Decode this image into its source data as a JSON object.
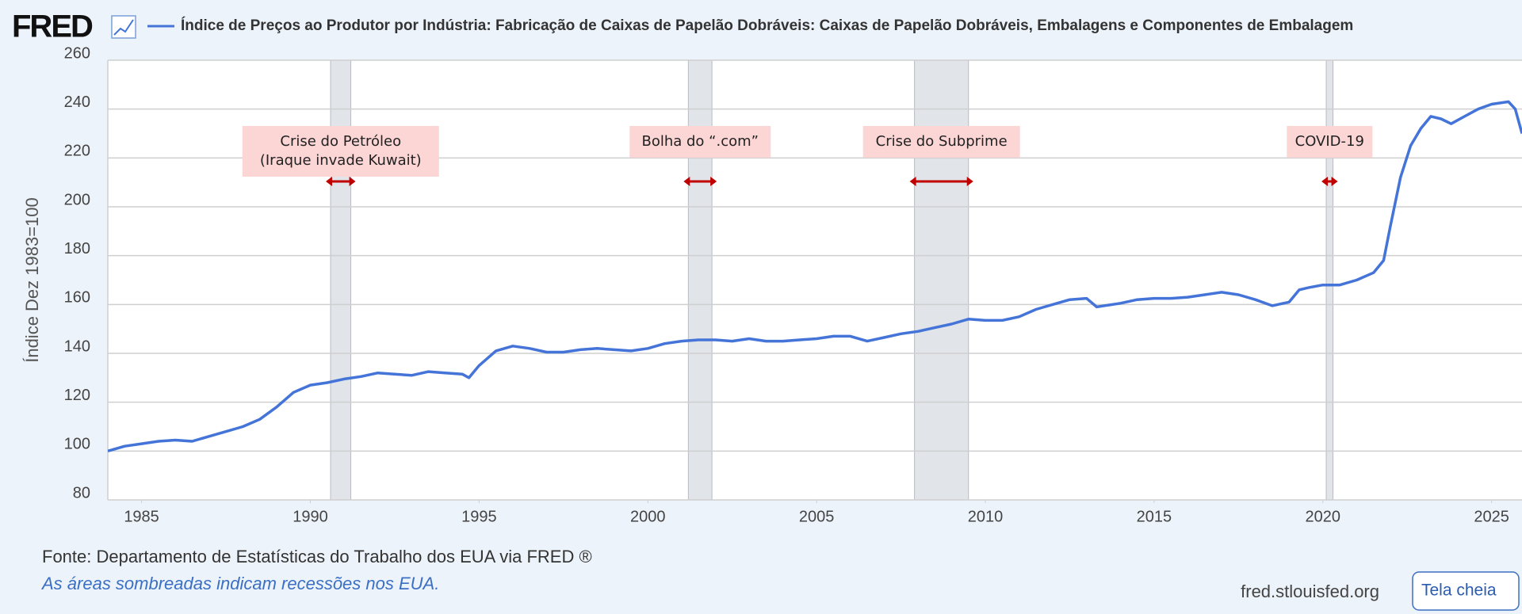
{
  "logo": "FRED",
  "chart_data": {
    "type": "line",
    "title": "Índice de Preços ao Produtor por Indústria: Fabricação de Caixas de Papelão Dobráveis: Caixas de Papelão Dobráveis, Embalagens e Componentes de Embalagem",
    "ylabel": "Índice Dez 1983=100",
    "xlim": [
      1984,
      2025.9
    ],
    "xticks": [
      1985,
      1990,
      1995,
      2000,
      2005,
      2010,
      2015,
      2020,
      2025
    ],
    "ylim": [
      80,
      260
    ],
    "yticks": [
      80,
      100,
      120,
      140,
      160,
      180,
      200,
      220,
      240,
      260
    ],
    "grid": true,
    "x": [
      1984.0,
      1984.5,
      1985,
      1985.5,
      1986,
      1986.5,
      1987,
      1987.5,
      1988,
      1988.5,
      1989,
      1989.5,
      1990,
      1990.5,
      1991,
      1991.5,
      1992,
      1992.5,
      1993,
      1993.5,
      1994,
      1994.5,
      1994.7,
      1995,
      1995.5,
      1996,
      1996.5,
      1997,
      1997.5,
      1998,
      1998.5,
      1999,
      1999.5,
      2000,
      2000.5,
      2001,
      2001.5,
      2002,
      2002.5,
      2003,
      2003.5,
      2004,
      2004.5,
      2005,
      2005.5,
      2006,
      2006.5,
      2007,
      2007.5,
      2008,
      2008.5,
      2009,
      2009.5,
      2010,
      2010.5,
      2011,
      2011.5,
      2012,
      2012.5,
      2013,
      2013.3,
      2014,
      2014.5,
      2015,
      2015.5,
      2016,
      2016.5,
      2017,
      2017.5,
      2018,
      2018.5,
      2019,
      2019.3,
      2019.6,
      2020,
      2020.5,
      2021,
      2021.5,
      2021.8,
      2022,
      2022.3,
      2022.6,
      2022.9,
      2023.2,
      2023.5,
      2023.8,
      2024.2,
      2024.6,
      2025,
      2025.5,
      2025.7,
      2025.9
    ],
    "series": [
      {
        "name": "Índice de Preços ao Produtor por Indústria: Fabricação de Caixas de Papelão Dobráveis: Caixas de Papelão Dobráveis, Embalagens e Componentes de Embalagem",
        "color": "#4574d8",
        "values": [
          100,
          102,
          103,
          104,
          104.5,
          104,
          106,
          108,
          110,
          113,
          118,
          124,
          127,
          128,
          129.5,
          130.5,
          132,
          131.5,
          131,
          132.5,
          132,
          131.5,
          130,
          135,
          141,
          143,
          142,
          140.5,
          140.5,
          141.5,
          142,
          141.5,
          141,
          142,
          144,
          145,
          145.5,
          145.5,
          145,
          146,
          145,
          145,
          145.5,
          146,
          147,
          147,
          145,
          146.5,
          148,
          149,
          150.5,
          152,
          154,
          153.5,
          153.5,
          155,
          158,
          160,
          162,
          162.5,
          159,
          160.5,
          162,
          162.5,
          162.5,
          163,
          164,
          165,
          164,
          162,
          159.5,
          161,
          166,
          167,
          168,
          168,
          170,
          173,
          178,
          192,
          212,
          225,
          232,
          237,
          236,
          234,
          237,
          240,
          242,
          243,
          240,
          230
        ]
      }
    ],
    "recessions": [
      [
        1990.6,
        1991.2
      ],
      [
        2001.2,
        2001.9
      ],
      [
        2007.9,
        2009.5
      ],
      [
        2020.1,
        2020.3
      ]
    ],
    "annotations": [
      [
        "Crise do Petróleo",
        "(Iraque invade Kuwait)"
      ],
      [
        "Bolha do “.com”"
      ],
      [
        "Crise do Subprime"
      ],
      [
        "COVID-19"
      ]
    ],
    "source": "Fonte: Departamento de Estatísticas do Trabalho dos EUA via FRED ®",
    "note": "As áreas sombreadas indicam recessões nos EUA."
  },
  "site": "fred.stlouisfed.org",
  "button": "Tela cheia"
}
